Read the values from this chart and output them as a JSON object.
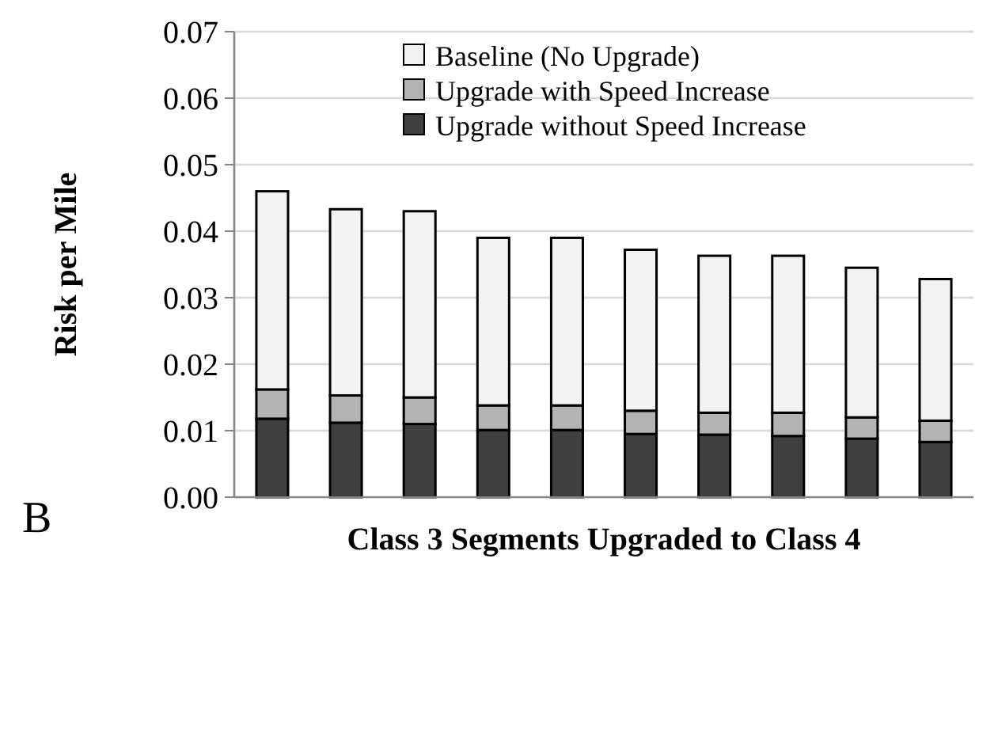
{
  "chart_data": {
    "type": "bar",
    "stacked": true,
    "xlabel": "Class 3 Segments Upgraded to Class 4",
    "ylabel": "Risk per Mile",
    "categories": [
      null,
      null,
      null,
      null,
      null,
      null,
      null,
      null,
      null,
      null
    ],
    "series": [
      {
        "name": "Upgrade without Speed Increase",
        "color": "#404040",
        "values": [
          0.0118,
          0.0112,
          0.011,
          0.0101,
          0.0101,
          0.0095,
          0.0094,
          0.0092,
          0.0088,
          0.0083
        ]
      },
      {
        "name": "Upgrade with Speed Increase",
        "color": "#b3b3b3",
        "values": [
          0.0044,
          0.0041,
          0.004,
          0.0037,
          0.0037,
          0.0035,
          0.0033,
          0.0035,
          0.0032,
          0.0032
        ]
      },
      {
        "name": "Baseline (No Upgrade)",
        "color": "#f2f2f2",
        "values": [
          0.0298,
          0.028,
          0.028,
          0.0252,
          0.0252,
          0.0242,
          0.0236,
          0.0236,
          0.0225,
          0.0213
        ]
      }
    ],
    "ylim": [
      0,
      0.07
    ],
    "yticks": [
      {
        "value": 0,
        "label": "0.00"
      },
      {
        "value": 0.01,
        "label": "0.01"
      },
      {
        "value": 0.02,
        "label": "0.02"
      },
      {
        "value": 0.03,
        "label": "0.03"
      },
      {
        "value": 0.04,
        "label": "0.04"
      },
      {
        "value": 0.05,
        "label": "0.05"
      },
      {
        "value": 0.06,
        "label": "0.06"
      },
      {
        "value": 0.07,
        "label": "0.07"
      }
    ],
    "grid": "y",
    "legend": "top right",
    "annotations": [
      "B"
    ]
  }
}
